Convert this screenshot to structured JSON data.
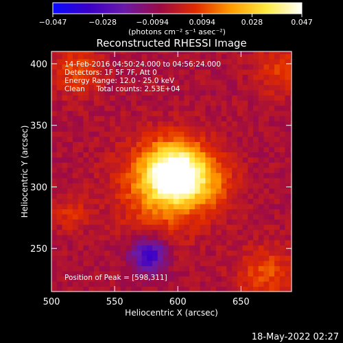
{
  "colorbar": {
    "ticks": [
      "−0.047",
      "−0.028",
      "−0.0094",
      "0.0094",
      "0.028",
      "0.047"
    ],
    "units": "(photons cm⁻² s⁻¹ asec⁻²)",
    "range": [
      -0.047,
      0.047
    ],
    "stops": [
      "#0a0aff",
      "#3a00c8",
      "#6a1aa8",
      "#9c0a46",
      "#e02a00",
      "#ff9a00",
      "#ffea40",
      "#ffffff"
    ]
  },
  "chart_data": {
    "type": "heatmap",
    "title": "Reconstructed RHESSI Image",
    "xlabel": "Heliocentric X (arcsec)",
    "ylabel": "Heliocentric Y (arcsec)",
    "xlim": [
      500,
      690
    ],
    "ylim": [
      215,
      410
    ],
    "xticks": [
      500,
      550,
      600,
      650
    ],
    "yticks": [
      250,
      300,
      350,
      400
    ],
    "annotations": [
      "14-Feb-2016 04:50:24.000 to 04:56:24.000",
      "Detectors: 1F 5F 7F, Att 0",
      "Energy Range: 12.0 - 25.0 keV",
      "Clean     Total counts: 2.53E+04"
    ],
    "peak_label": "Position of Peak = [598,311]",
    "peak": [
      598,
      311
    ],
    "sources": [
      {
        "x": 598,
        "y": 311,
        "sigma": 16,
        "amp": 0.05
      },
      {
        "x": 588,
        "y": 300,
        "sigma": 26,
        "amp": 0.02
      },
      {
        "x": 625,
        "y": 305,
        "sigma": 16,
        "amp": 0.012
      },
      {
        "x": 577,
        "y": 245,
        "sigma": 10,
        "amp": -0.03
      },
      {
        "x": 520,
        "y": 395,
        "sigma": 14,
        "amp": 0.014
      },
      {
        "x": 680,
        "y": 395,
        "sigma": 14,
        "amp": 0.012
      },
      {
        "x": 670,
        "y": 230,
        "sigma": 16,
        "amp": 0.014
      },
      {
        "x": 515,
        "y": 280,
        "sigma": 10,
        "amp": 0.01
      }
    ]
  },
  "footer": {
    "date": "18-May-2022 02:27"
  }
}
